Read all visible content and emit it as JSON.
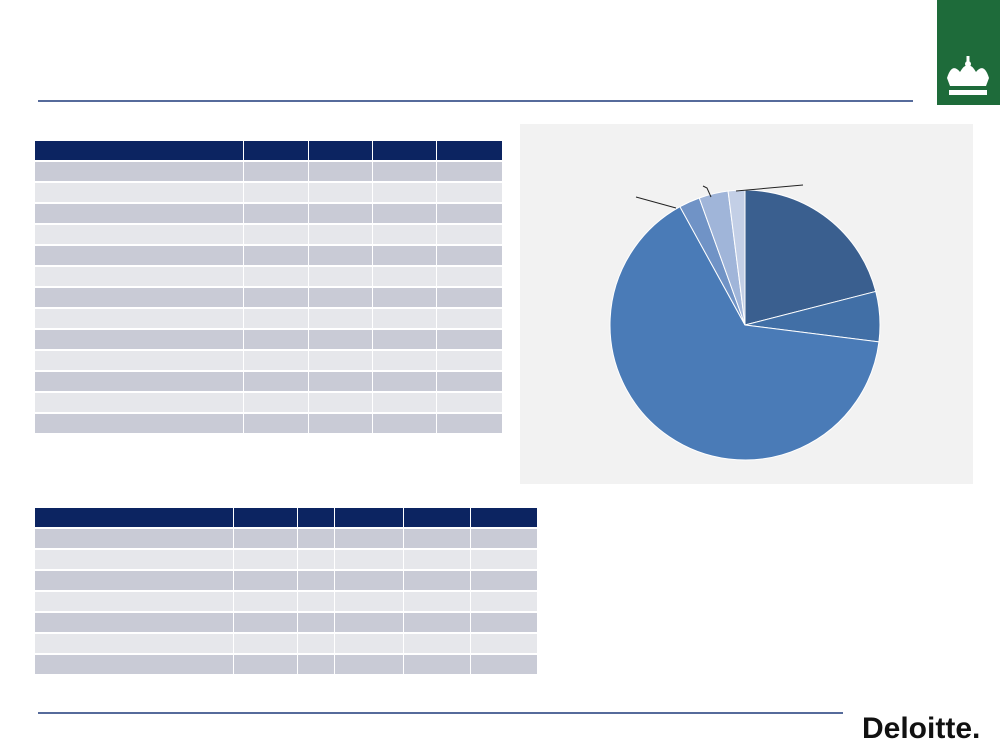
{
  "chart_data": {
    "type": "pie",
    "values": [
      21,
      6,
      65,
      2.5,
      3.5,
      2
    ],
    "colors": [
      "#3a5f8f",
      "#416fa6",
      "#4a7bb7",
      "#7093c6",
      "#a0b5d9",
      "#c3cfe6"
    ]
  },
  "footer": {
    "logo": "Deloitte."
  }
}
